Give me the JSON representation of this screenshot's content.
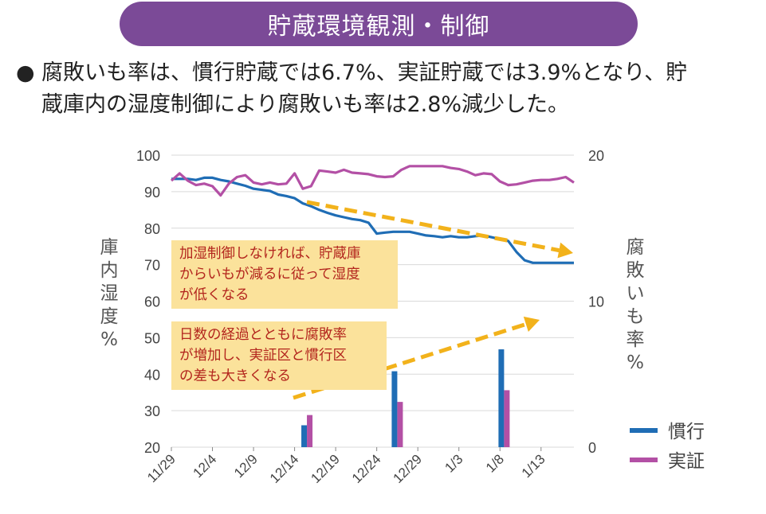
{
  "header": {
    "title": "貯蔵環境観測・制御"
  },
  "summary": {
    "bullet": "●",
    "line1": "腐敗いも率は、慣行貯蔵では6.7%、実証貯蔵では3.9%となり、貯",
    "line2": "蔵庫内の湿度制御により腐敗いも率は2.8%減少した。"
  },
  "callouts": {
    "humidity": [
      "加湿制御しなければ、貯蔵庫",
      "からいもが減るに従って湿度",
      "が低くなる"
    ],
    "rot": [
      "日数の経過とともに腐敗率",
      "が増加し、実証区と慣行区",
      "の差も大きくなる"
    ]
  },
  "colors": {
    "conventional": "#1f6db5",
    "demo": "#b350a5",
    "arrow": "#f2b21b",
    "grid": "#d9d9d9"
  },
  "chart_data": {
    "type": "line+bar",
    "title": "",
    "left_axis": {
      "label": "庫内湿度%",
      "ylim": [
        20,
        100
      ],
      "ticks": [
        "100",
        "90",
        "80",
        "70",
        "60",
        "50",
        "40",
        "30",
        "20"
      ]
    },
    "right_axis": {
      "label": "腐敗いも率%",
      "ylim": [
        0,
        20
      ],
      "ticks": [
        "20",
        "10",
        "0"
      ]
    },
    "x_ticks": [
      {
        "label": "11/29",
        "day": 0
      },
      {
        "label": "12/4",
        "day": 5
      },
      {
        "label": "12/9",
        "day": 10
      },
      {
        "label": "12/14",
        "day": 15
      },
      {
        "label": "12/19",
        "day": 20
      },
      {
        "label": "12/24",
        "day": 25
      },
      {
        "label": "12/29",
        "day": 30
      },
      {
        "label": "1/3",
        "day": 35
      },
      {
        "label": "1/8",
        "day": 40
      },
      {
        "label": "1/13",
        "day": 45
      }
    ],
    "x_range": [
      0,
      49
    ],
    "legend": [
      {
        "name": "慣行",
        "color": "#1f6db5"
      },
      {
        "name": "実証",
        "color": "#b350a5"
      }
    ],
    "humidity_series": [
      {
        "name": "慣行",
        "color": "#1f6db5",
        "points": [
          [
            0,
            93.5
          ],
          [
            2,
            93.5
          ],
          [
            3,
            93.2
          ],
          [
            4,
            93.8
          ],
          [
            5,
            93.8
          ],
          [
            6,
            93.2
          ],
          [
            7,
            92.8
          ],
          [
            8,
            92.2
          ],
          [
            9,
            91.6
          ],
          [
            10,
            90.8
          ],
          [
            11,
            90.5
          ],
          [
            12,
            90.2
          ],
          [
            13,
            89.2
          ],
          [
            14,
            88.8
          ],
          [
            15,
            88.2
          ],
          [
            16,
            86.8
          ],
          [
            17,
            86.0
          ],
          [
            18,
            85.0
          ],
          [
            19,
            84.2
          ],
          [
            20,
            83.5
          ],
          [
            21,
            83.0
          ],
          [
            22,
            82.5
          ],
          [
            23,
            82.2
          ],
          [
            24,
            81.5
          ],
          [
            25,
            78.5
          ],
          [
            26,
            78.8
          ],
          [
            27,
            79.0
          ],
          [
            28,
            79.0
          ],
          [
            29,
            79.0
          ],
          [
            30,
            78.5
          ],
          [
            31,
            78.0
          ],
          [
            32,
            77.8
          ],
          [
            33,
            77.5
          ],
          [
            34,
            77.8
          ],
          [
            35,
            77.5
          ],
          [
            36,
            77.5
          ],
          [
            37,
            77.8
          ],
          [
            38,
            78.0
          ],
          [
            39,
            77.5
          ],
          [
            40,
            77.0
          ],
          [
            41,
            76.5
          ],
          [
            42,
            73.5
          ],
          [
            43,
            71.2
          ],
          [
            44,
            70.5
          ],
          [
            45,
            70.5
          ],
          [
            46,
            70.5
          ],
          [
            47,
            70.5
          ],
          [
            48,
            70.5
          ],
          [
            49,
            70.5
          ]
        ]
      },
      {
        "name": "実証",
        "color": "#b350a5",
        "points": [
          [
            0,
            93.0
          ],
          [
            1,
            95.0
          ],
          [
            2,
            93.0
          ],
          [
            3,
            91.8
          ],
          [
            4,
            92.2
          ],
          [
            5,
            91.5
          ],
          [
            6,
            89.0
          ],
          [
            7,
            92.2
          ],
          [
            8,
            94.0
          ],
          [
            9,
            94.5
          ],
          [
            10,
            92.5
          ],
          [
            11,
            92.0
          ],
          [
            12,
            92.5
          ],
          [
            13,
            92.0
          ],
          [
            14,
            92.2
          ],
          [
            15,
            95.0
          ],
          [
            16,
            90.8
          ],
          [
            17,
            91.5
          ],
          [
            18,
            95.8
          ],
          [
            19,
            95.5
          ],
          [
            20,
            95.2
          ],
          [
            21,
            96.0
          ],
          [
            22,
            95.2
          ],
          [
            23,
            95.0
          ],
          [
            24,
            94.8
          ],
          [
            25,
            94.2
          ],
          [
            26,
            94.0
          ],
          [
            27,
            94.2
          ],
          [
            28,
            96.0
          ],
          [
            29,
            97.0
          ],
          [
            30,
            97.0
          ],
          [
            31,
            97.0
          ],
          [
            32,
            97.0
          ],
          [
            33,
            97.0
          ],
          [
            34,
            96.5
          ],
          [
            35,
            96.2
          ],
          [
            36,
            95.5
          ],
          [
            37,
            94.5
          ],
          [
            38,
            95.0
          ],
          [
            39,
            94.8
          ],
          [
            40,
            92.8
          ],
          [
            41,
            91.8
          ],
          [
            42,
            92.0
          ],
          [
            43,
            92.5
          ],
          [
            44,
            93.0
          ],
          [
            45,
            93.2
          ],
          [
            46,
            93.2
          ],
          [
            47,
            93.5
          ],
          [
            48,
            94.0
          ],
          [
            49,
            92.5
          ]
        ]
      }
    ],
    "rot_bars": [
      {
        "day": 16.5,
        "慣行": 1.5,
        "実証": 2.2
      },
      {
        "day": 27.5,
        "慣行": 5.2,
        "実証": 3.1
      },
      {
        "day": 40.5,
        "慣行": 6.7,
        "実証": 3.9
      }
    ]
  }
}
